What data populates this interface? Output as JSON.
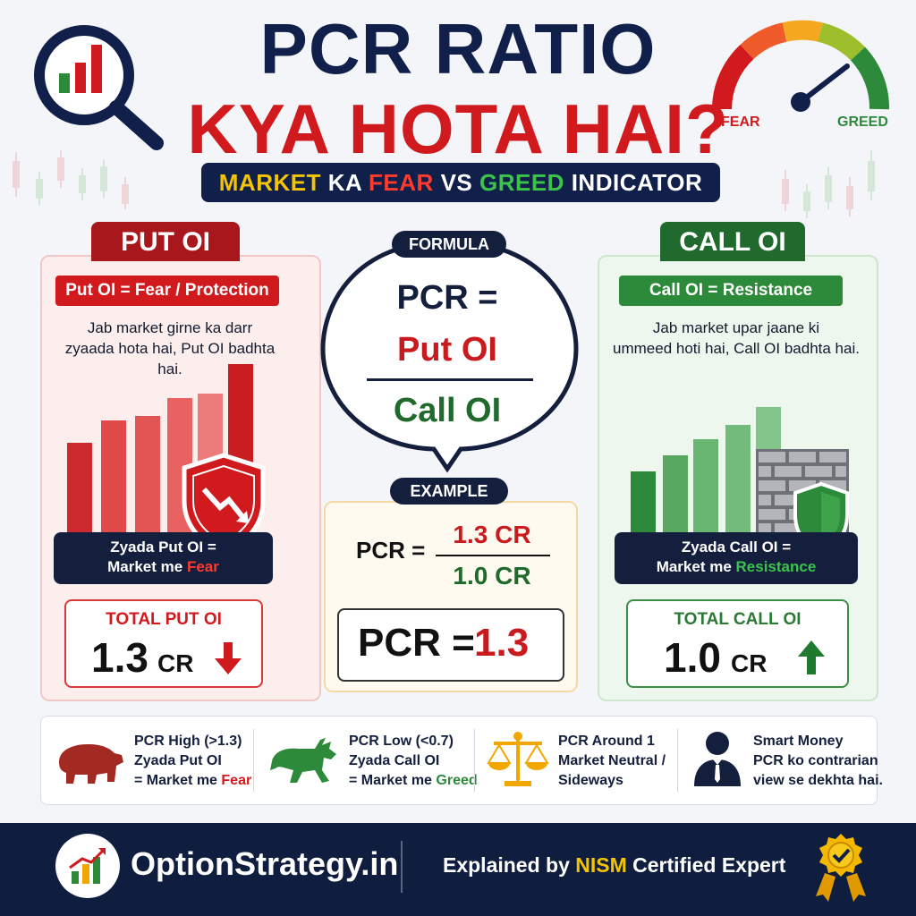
{
  "header": {
    "title_line1": "PCR RATIO",
    "title_line2": "KYA HOTA HAI?",
    "subtitle_part1": "MARKET",
    "subtitle_part2": "KA",
    "subtitle_part3": "FEAR",
    "subtitle_part4": "VS",
    "subtitle_part5": "GREED",
    "subtitle_part6": "INDICATOR"
  },
  "gauge": {
    "fear_label": "FEAR",
    "greed_label": "GREED"
  },
  "put_column": {
    "tab": "PUT OI",
    "pill": "Put OI = Fear / Protection",
    "desc_line1": "Jab market girne ka darr",
    "desc_line2": "zyaada hota hai, Put OI badhta hai.",
    "note_line1": "Zyada Put OI =",
    "note_line2a": "Market me ",
    "note_line2b": "Fear",
    "total_label": "TOTAL PUT OI",
    "total_value": "1.3",
    "total_unit": "CR"
  },
  "formula": {
    "tag": "FORMULA",
    "lhs": "PCR =",
    "numerator": "Put OI",
    "denominator": "Call OI"
  },
  "example": {
    "tag": "EXAMPLE",
    "lhs": "PCR =",
    "numerator": "1.3 CR",
    "denominator": "1.0 CR",
    "result_label": "PCR =",
    "result_value": "1.3"
  },
  "call_column": {
    "tab": "CALL OI",
    "pill": "Call OI = Resistance",
    "desc_line1": "Jab market upar jaane ki",
    "desc_line2": "ummeed hoti hai, Call OI badhta hai.",
    "note_line1": "Zyada Call OI =",
    "note_line2a": "Market me ",
    "note_line2b": "Resistance",
    "total_label": "TOTAL CALL OI",
    "total_value": "1.0",
    "total_unit": "CR"
  },
  "legend": [
    {
      "icon": "bear-icon",
      "line1": "PCR High (>1.3)",
      "line2": "Zyada Put OI",
      "line3a": "= Market me ",
      "line3b": "Fear"
    },
    {
      "icon": "bull-icon",
      "line1": "PCR Low (<0.7)",
      "line2": "Zyada Call OI",
      "line3a": "= Market me ",
      "line3b": "Greed"
    },
    {
      "icon": "scale-icon",
      "line1": "PCR Around 1",
      "line2": "Market Neutral /",
      "line3a": "Sideways",
      "line3b": ""
    },
    {
      "icon": "businessman-icon",
      "line1": "Smart Money",
      "line2": "PCR ko contrarian",
      "line3a": "view se dekhta hai.",
      "line3b": ""
    }
  ],
  "footer": {
    "brand": "OptionStrategy.in",
    "tagline_a": "Explained by ",
    "tagline_b": "NISM",
    "tagline_c": " Certified Expert"
  },
  "colors": {
    "navy": "#10204a",
    "red": "#d01a1e",
    "green": "#2c8a3a",
    "yellow": "#f5c400"
  }
}
